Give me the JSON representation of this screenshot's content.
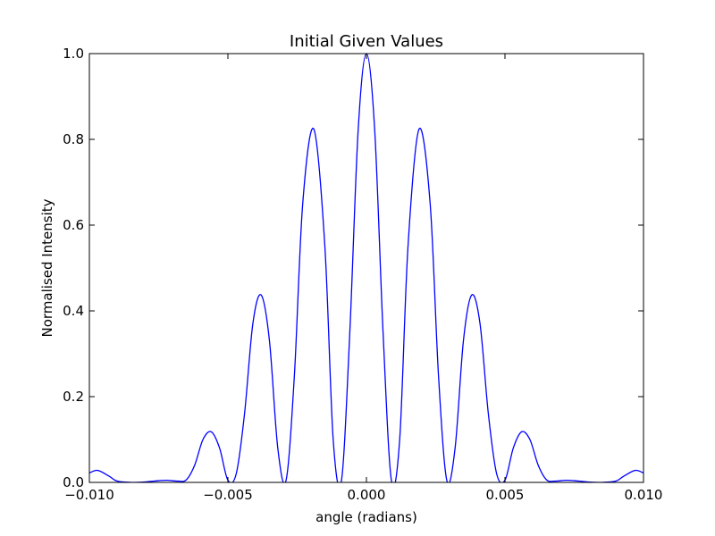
{
  "chart_data": {
    "type": "line",
    "title": "Initial Given Values",
    "xlabel": "angle (radians)",
    "ylabel": "Normalised Intensity",
    "xlim": [
      -0.01,
      0.01
    ],
    "ylim": [
      0.0,
      1.0
    ],
    "xticks": [
      -0.01,
      -0.005,
      0.0,
      0.005,
      0.01
    ],
    "xtick_labels": [
      "−0.010",
      "−0.005",
      "0.000",
      "0.005",
      "0.010"
    ],
    "yticks": [
      0.0,
      0.2,
      0.4,
      0.6,
      0.8,
      1.0
    ],
    "ytick_labels": [
      "0.0",
      "0.2",
      "0.4",
      "0.6",
      "0.8",
      "1.0"
    ],
    "grid": false,
    "series": [
      {
        "color": "#0000ff",
        "x": [
          -0.01,
          -0.0097,
          -0.0093,
          -0.009,
          -0.0085,
          -0.008,
          -0.0075,
          -0.0072,
          -0.0068,
          -0.0065,
          -0.0062,
          -0.0059,
          -0.0056,
          -0.0053,
          -0.005,
          -0.0047,
          -0.0044,
          -0.0041,
          -0.0038,
          -0.0035,
          -0.0032,
          -0.0029,
          -0.0026,
          -0.0023,
          -0.0019,
          -0.0015,
          -0.0012,
          -0.0009,
          -0.0006,
          -0.0003,
          0.0,
          0.0003,
          0.0006,
          0.0009,
          0.0012,
          0.0015,
          0.0019,
          0.0023,
          0.0026,
          0.0029,
          0.0032,
          0.0035,
          0.0038,
          0.0041,
          0.0044,
          0.0047,
          0.005,
          0.0053,
          0.0056,
          0.0059,
          0.0062,
          0.0065,
          0.0068,
          0.0072,
          0.0075,
          0.008,
          0.0085,
          0.009,
          0.0093,
          0.0097,
          0.01
        ],
        "y": [
          0.022,
          0.028,
          0.015,
          0.003,
          0.0,
          0.001,
          0.004,
          0.005,
          0.003,
          0.006,
          0.04,
          0.1,
          0.118,
          0.08,
          0.005,
          0.02,
          0.16,
          0.37,
          0.437,
          0.33,
          0.08,
          0.005,
          0.25,
          0.65,
          0.824,
          0.55,
          0.1,
          0.005,
          0.35,
          0.82,
          1.0,
          0.82,
          0.35,
          0.005,
          0.1,
          0.55,
          0.824,
          0.65,
          0.25,
          0.005,
          0.08,
          0.33,
          0.437,
          0.37,
          0.16,
          0.02,
          0.005,
          0.08,
          0.118,
          0.1,
          0.04,
          0.006,
          0.003,
          0.005,
          0.004,
          0.001,
          0.0,
          0.003,
          0.015,
          0.028,
          0.022
        ]
      }
    ]
  }
}
